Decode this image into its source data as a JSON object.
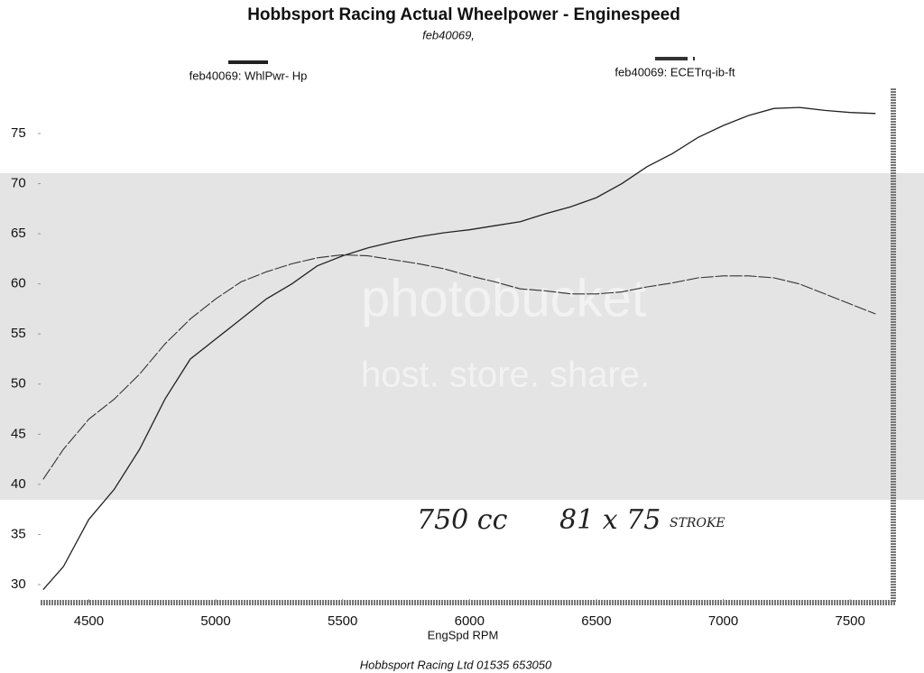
{
  "chart_data": {
    "type": "line",
    "title": "Hobbsport Racing Actual Wheelpower - Enginespeed",
    "subtitle": "feb40069,",
    "x_label": "EngSpd RPM",
    "footer": "Hobbsport Racing Ltd 01535 653050",
    "annotations": [
      "750 cc",
      "81 x 75",
      "STROKE"
    ],
    "watermark": [
      "photobucket",
      "host. store. share."
    ],
    "x": [
      4320,
      4400,
      4500,
      4600,
      4700,
      4800,
      4900,
      5000,
      5100,
      5200,
      5300,
      5400,
      5500,
      5600,
      5700,
      5800,
      5900,
      6000,
      6100,
      6200,
      6300,
      6400,
      6500,
      6600,
      6700,
      6800,
      6900,
      7000,
      7100,
      7200,
      7300,
      7400,
      7500,
      7600
    ],
    "series": [
      {
        "name": "feb40069: WhlPwr- Hp",
        "color": "#222222",
        "values": [
          29.5,
          31.8,
          36.5,
          39.5,
          43.5,
          48.5,
          52.5,
          54.5,
          56.5,
          58.5,
          60.0,
          61.8,
          62.8,
          63.6,
          64.2,
          64.7,
          65.1,
          65.4,
          65.8,
          66.2,
          67.0,
          67.7,
          68.6,
          70.0,
          71.7,
          73.0,
          74.6,
          75.8,
          76.8,
          77.5,
          77.6,
          77.3,
          77.1,
          77.0
        ]
      },
      {
        "name": "feb40069: ECETrq-ib-ft",
        "color": "#333333",
        "values": [
          40.5,
          43.5,
          46.5,
          48.5,
          51.0,
          54.0,
          56.5,
          58.5,
          60.2,
          61.2,
          62.0,
          62.6,
          62.9,
          62.8,
          62.4,
          62.0,
          61.5,
          60.8,
          60.2,
          59.5,
          59.3,
          59.0,
          59.0,
          59.2,
          59.7,
          60.1,
          60.6,
          60.8,
          60.8,
          60.6,
          60.0,
          59.0,
          58.0,
          57.0
        ]
      }
    ],
    "xlim": [
      4310,
      7670
    ],
    "xticks": [
      4500,
      5000,
      5500,
      6000,
      6500,
      7000,
      7500
    ],
    "ylim": [
      28.2,
      79.5
    ],
    "yticks": [
      30,
      35,
      40,
      45,
      50,
      55,
      60,
      65,
      70,
      75
    ],
    "grid": false
  }
}
